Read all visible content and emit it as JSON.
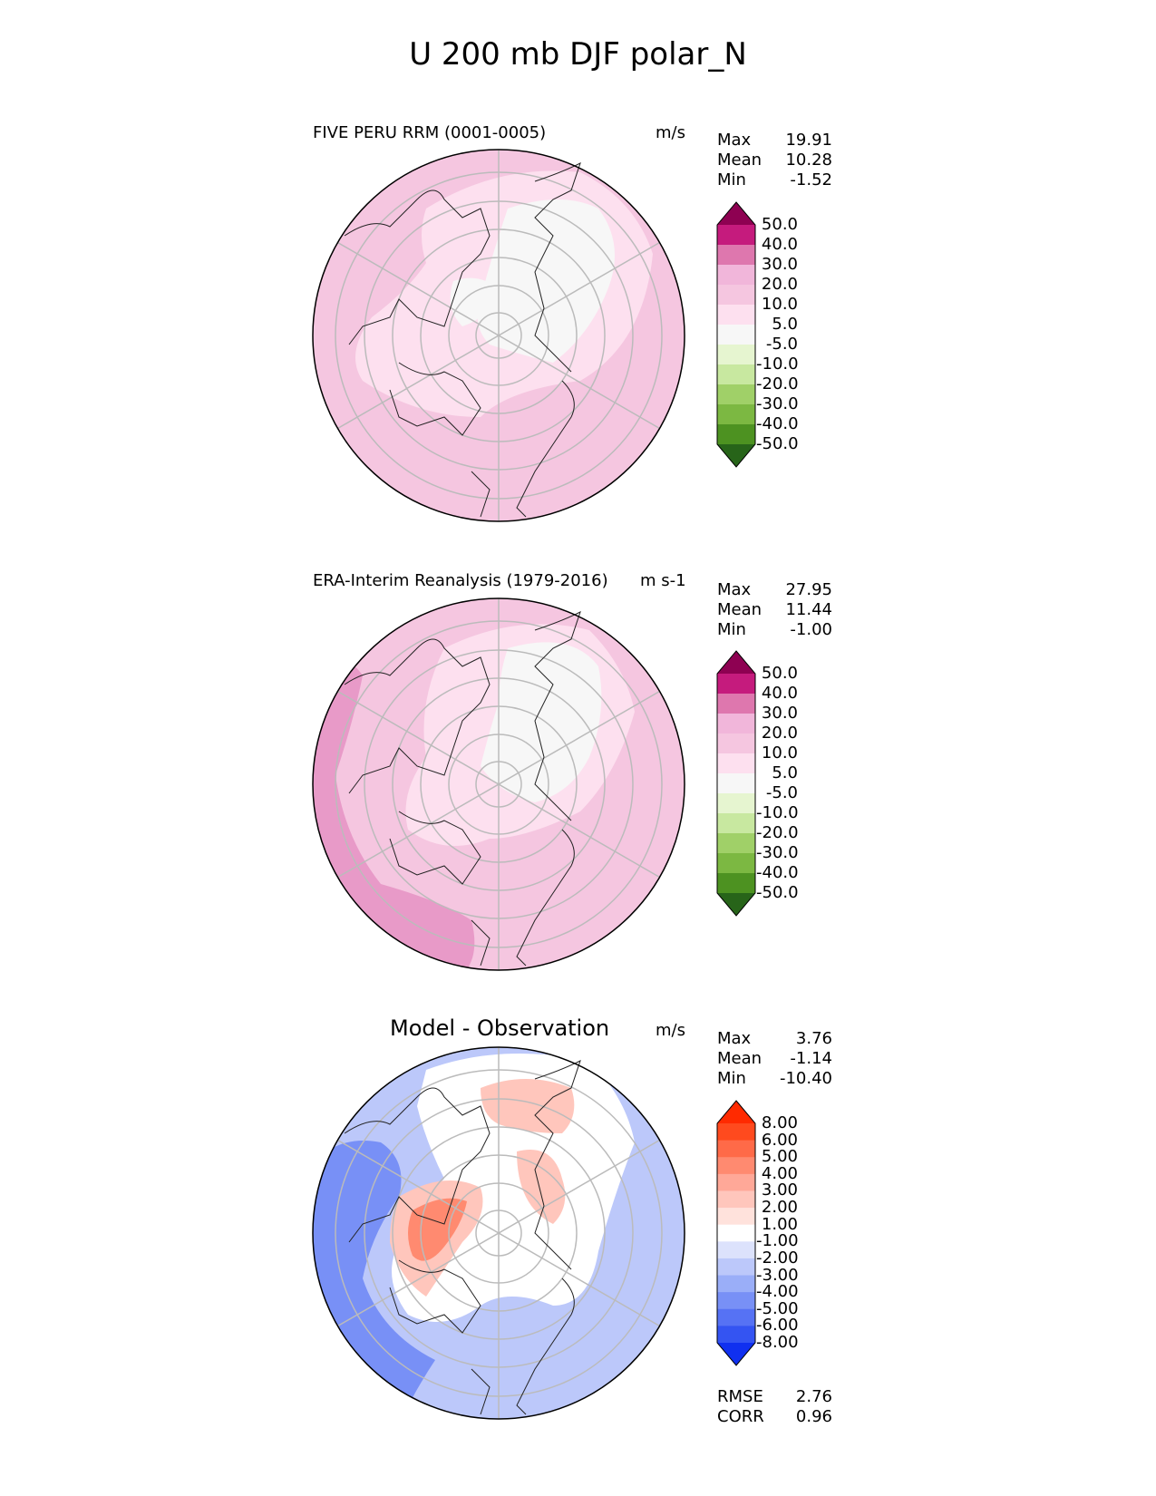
{
  "title": "U 200 mb DJF polar_N",
  "panels": [
    {
      "title": "FIVE PERU RRM (0001-0005)",
      "units": "m/s",
      "stats": [
        {
          "label": "Max",
          "value": "19.91"
        },
        {
          "label": "Mean",
          "value": "10.28"
        },
        {
          "label": "Min",
          "value": "-1.52"
        }
      ]
    },
    {
      "title": "ERA-Interim Reanalysis (1979-2016)",
      "units": "m s-1",
      "stats": [
        {
          "label": "Max",
          "value": "27.95"
        },
        {
          "label": "Mean",
          "value": "11.44"
        },
        {
          "label": "Min",
          "value": "-1.00"
        }
      ]
    },
    {
      "title": "Model - Observation",
      "units": "m/s",
      "stats": [
        {
          "label": "Max",
          "value": "3.76"
        },
        {
          "label": "Mean",
          "value": "-1.14"
        },
        {
          "label": "Min",
          "value": "-10.40"
        }
      ],
      "extra_stats": [
        {
          "label": "RMSE",
          "value": "2.76"
        },
        {
          "label": "CORR",
          "value": "0.96"
        }
      ]
    }
  ],
  "colorbars": {
    "field": {
      "labels": [
        "50.0",
        "40.0",
        "30.0",
        "20.0",
        "10.0",
        "5.0",
        "-5.0",
        "-10.0",
        "-20.0",
        "-30.0",
        "-40.0",
        "-50.0"
      ],
      "colors": [
        "#8e0152",
        "#c51b7d",
        "#de77ae",
        "#f1b6da",
        "#f5c6e0",
        "#fde0ef",
        "#f7f7f7",
        "#e6f5d0",
        "#c8e8a0",
        "#a0d068",
        "#7cb842",
        "#4d9221",
        "#276419"
      ]
    },
    "diff": {
      "labels": [
        "8.00",
        "6.00",
        "5.00",
        "4.00",
        "3.00",
        "2.00",
        "1.00",
        "-1.00",
        "-2.00",
        "-3.00",
        "-4.00",
        "-5.00",
        "-6.00",
        "-8.00"
      ],
      "colors": [
        "#ff2a00",
        "#ff4a1e",
        "#ff6a48",
        "#ff8a70",
        "#ffa898",
        "#ffc6bc",
        "#ffe2dc",
        "#ffffff",
        "#dce2fc",
        "#bcc8fa",
        "#9aaef8",
        "#7890f6",
        "#5672f4",
        "#3454f2",
        "#1030f0"
      ]
    }
  },
  "map_colors": {
    "field_base": "#f5c6e0",
    "field_light": "#fde0ef",
    "field_white": "#f7f7f7",
    "field_strong": "#e89ac8",
    "diff_white": "#ffffff",
    "diff_lightblue": "#bcc8fa",
    "diff_blue": "#7890f6",
    "diff_darkblue": "#1030f0",
    "diff_lightred": "#ffc6bc",
    "diff_red": "#ff8a70"
  }
}
